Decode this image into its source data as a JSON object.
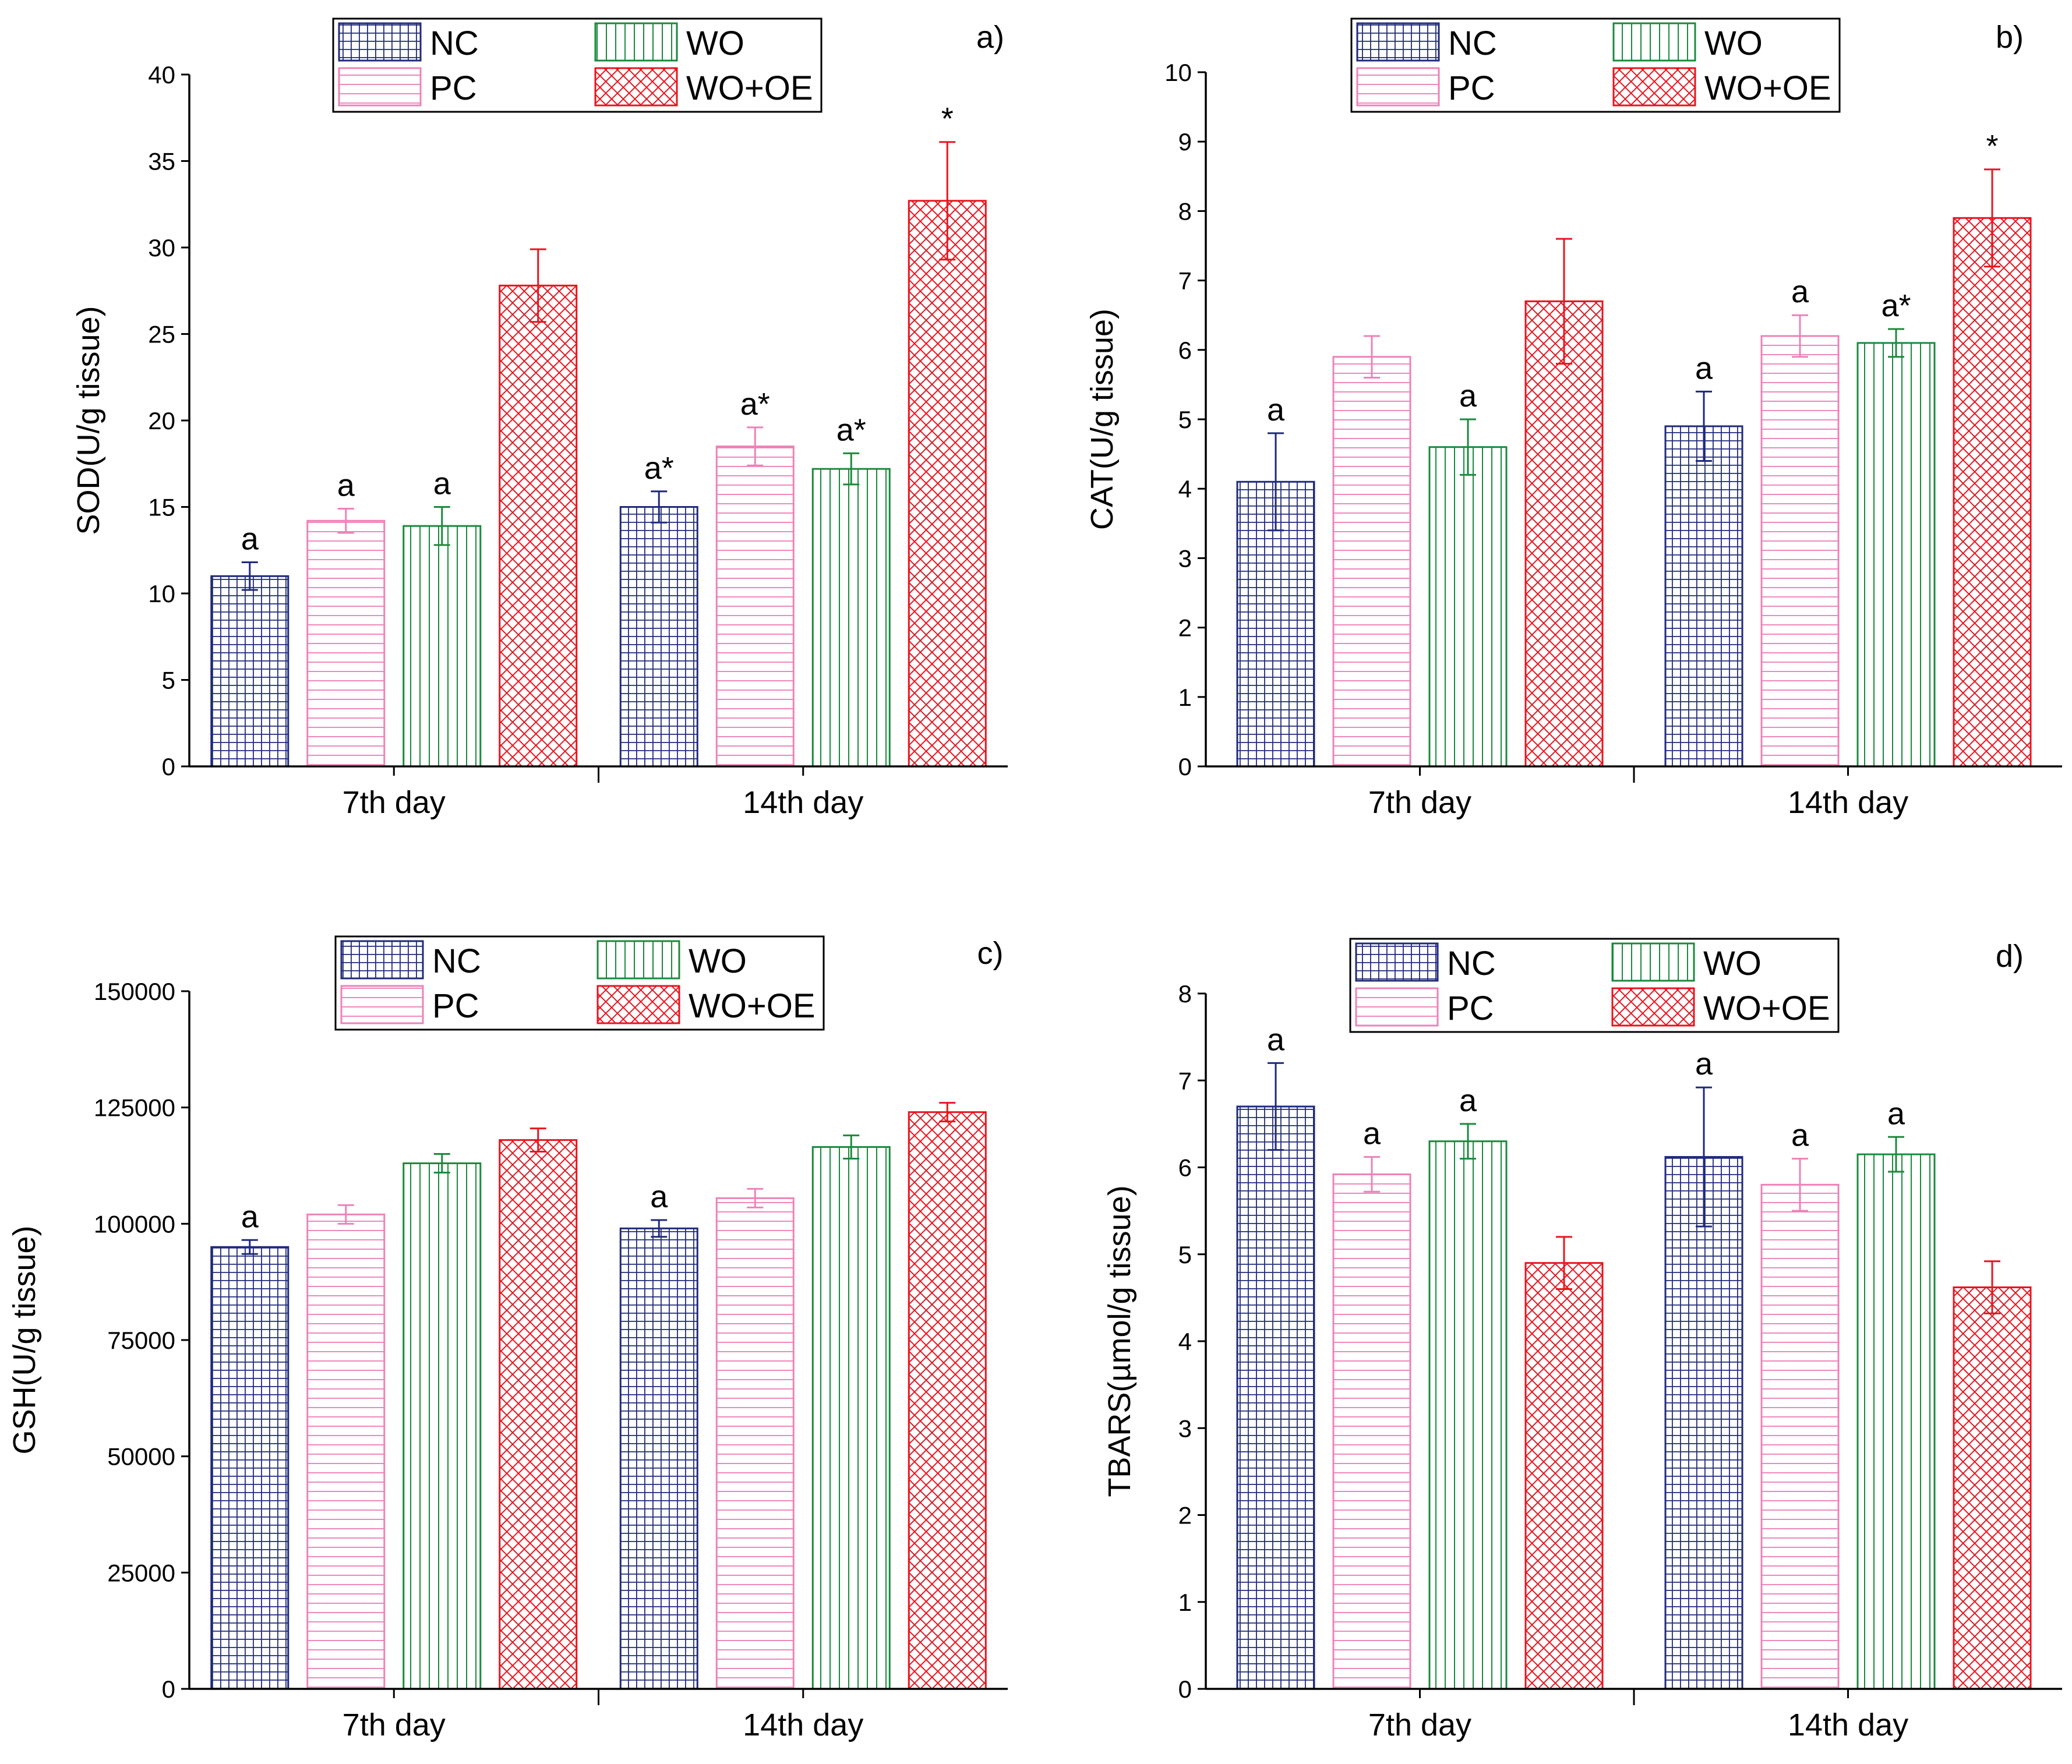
{
  "chart_data": [
    {
      "type": "bar",
      "panel_label": "a)",
      "ylabel": "SOD(U/g tissue)",
      "ylim": [
        0,
        40
      ],
      "yticks": [
        0,
        5,
        10,
        15,
        20,
        25,
        30,
        35,
        40
      ],
      "ytick_labels": [
        "0",
        "5",
        "10",
        "15",
        "20",
        "25",
        "30",
        "35",
        "40"
      ],
      "categories": [
        "7th day",
        "14th day"
      ],
      "legend": [
        "NC",
        "WO",
        "PC",
        "WO+OE"
      ],
      "series": [
        {
          "name": "NC",
          "values": [
            11.0,
            15.0
          ],
          "errors": [
            0.8,
            0.9
          ],
          "labels": [
            "a",
            "a*"
          ]
        },
        {
          "name": "PC",
          "values": [
            14.2,
            18.5
          ],
          "errors": [
            0.7,
            1.1
          ],
          "labels": [
            "a",
            "a*"
          ]
        },
        {
          "name": "WO",
          "values": [
            13.9,
            17.2
          ],
          "errors": [
            1.1,
            0.9
          ],
          "labels": [
            "a",
            "a*"
          ]
        },
        {
          "name": "WO+OE",
          "values": [
            27.8,
            32.7
          ],
          "errors": [
            2.1,
            3.4
          ],
          "labels": [
            "",
            "*"
          ]
        }
      ]
    },
    {
      "type": "bar",
      "panel_label": "b)",
      "ylabel": "CAT(U/g tissue)",
      "ylim": [
        0,
        10
      ],
      "yticks": [
        0,
        1,
        2,
        3,
        4,
        5,
        6,
        7,
        8,
        9,
        10
      ],
      "ytick_labels": [
        "0",
        "1",
        "2",
        "3",
        "4",
        "5",
        "6",
        "7",
        "8",
        "9",
        "10"
      ],
      "categories": [
        "7th day",
        "14th day"
      ],
      "legend": [
        "NC",
        "WO",
        "PC",
        "WO+OE"
      ],
      "series": [
        {
          "name": "NC",
          "values": [
            4.1,
            4.9
          ],
          "errors": [
            0.7,
            0.5
          ],
          "labels": [
            "a",
            "a"
          ]
        },
        {
          "name": "PC",
          "values": [
            5.9,
            6.2
          ],
          "errors": [
            0.3,
            0.3
          ],
          "labels": [
            "",
            "a"
          ]
        },
        {
          "name": "WO",
          "values": [
            4.6,
            6.1
          ],
          "errors": [
            0.4,
            0.2
          ],
          "labels": [
            "a",
            "a*"
          ]
        },
        {
          "name": "WO+OE",
          "values": [
            6.7,
            7.9
          ],
          "errors": [
            0.9,
            0.7
          ],
          "labels": [
            "",
            "*"
          ]
        }
      ]
    },
    {
      "type": "bar",
      "panel_label": "c)",
      "ylabel": "GSH(U/g tissue)",
      "ylim": [
        0,
        150000
      ],
      "yticks": [
        0,
        25000,
        50000,
        75000,
        100000,
        125000,
        150000
      ],
      "ytick_labels": [
        "0",
        "25000",
        "50000",
        "75000",
        "100000",
        "125000",
        "150000"
      ],
      "categories": [
        "7th day",
        "14th day"
      ],
      "legend": [
        "NC",
        "WO",
        "PC",
        "WO+OE"
      ],
      "series": [
        {
          "name": "NC",
          "values": [
            95000,
            99000
          ],
          "errors": [
            1500,
            1800
          ],
          "labels": [
            "a",
            "a"
          ]
        },
        {
          "name": "PC",
          "values": [
            102000,
            105500
          ],
          "errors": [
            2000,
            2000
          ],
          "labels": [
            "",
            ""
          ]
        },
        {
          "name": "WO",
          "values": [
            113000,
            116500
          ],
          "errors": [
            2000,
            2500
          ],
          "labels": [
            "",
            ""
          ]
        },
        {
          "name": "WO+OE",
          "values": [
            118000,
            124000
          ],
          "errors": [
            2500,
            2000
          ],
          "labels": [
            "",
            ""
          ]
        }
      ]
    },
    {
      "type": "bar",
      "panel_label": "d)",
      "ylabel": "TBARS(µmol/g tissue)",
      "ylim": [
        0,
        8
      ],
      "yticks": [
        0,
        1,
        2,
        3,
        4,
        5,
        6,
        7,
        8
      ],
      "ytick_labels": [
        "0",
        "1",
        "2",
        "3",
        "4",
        "5",
        "6",
        "7",
        "8"
      ],
      "categories": [
        "7th day",
        "14th day"
      ],
      "legend": [
        "NC",
        "WO",
        "PC",
        "WO+OE"
      ],
      "series": [
        {
          "name": "NC",
          "values": [
            6.7,
            6.12
          ],
          "errors": [
            0.5,
            0.8
          ],
          "labels": [
            "a",
            "a"
          ]
        },
        {
          "name": "PC",
          "values": [
            5.92,
            5.8
          ],
          "errors": [
            0.2,
            0.3
          ],
          "labels": [
            "a",
            "a"
          ]
        },
        {
          "name": "WO",
          "values": [
            6.3,
            6.15
          ],
          "errors": [
            0.2,
            0.2
          ],
          "labels": [
            "a",
            "a"
          ]
        },
        {
          "name": "WO+OE",
          "values": [
            4.9,
            4.62
          ],
          "errors": [
            0.3,
            0.3
          ],
          "labels": [
            "",
            ""
          ]
        }
      ]
    }
  ],
  "series_colors": {
    "NC": "#1f2a7a",
    "PC": "#ee82b8",
    "WO": "#1a8a3c",
    "WO+OE": "#e8141e"
  }
}
